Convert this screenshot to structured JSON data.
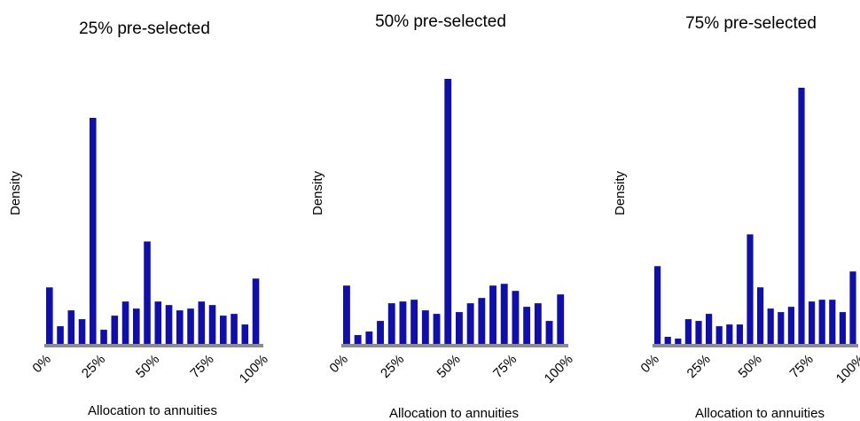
{
  "bar_color": "#1010a8",
  "baseline_color": "#8c8c8c",
  "chart_data": [
    {
      "type": "bar",
      "title": "25% pre-selected",
      "xlabel": "Allocation to annuities",
      "ylabel": "Density",
      "x_ticks": [
        "0%",
        "25%",
        "50%",
        "75%",
        "100%"
      ],
      "x_tick_bins": [
        0,
        5,
        10,
        15,
        20
      ],
      "ylim": [
        0,
        130
      ],
      "values": [
        32,
        10,
        19,
        14,
        128,
        8,
        16,
        24,
        20,
        58,
        24,
        22,
        19,
        20,
        24,
        22,
        16,
        17,
        11,
        37
      ]
    },
    {
      "type": "bar",
      "title": "50% pre-selected",
      "xlabel": "Allocation to annuities",
      "ylabel": "Density",
      "x_ticks": [
        "0%",
        "25%",
        "50%",
        "75%",
        "100%"
      ],
      "x_tick_bins": [
        0,
        5,
        10,
        15,
        20
      ],
      "ylim": [
        0,
        150
      ],
      "values": [
        33,
        5,
        7,
        13,
        23,
        24,
        25,
        19,
        17,
        150,
        18,
        23,
        26,
        33,
        34,
        30,
        21,
        23,
        13,
        28
      ]
    },
    {
      "type": "bar",
      "title": "75% pre-selected",
      "xlabel": "Allocation to annuities",
      "ylabel": "Density",
      "x_ticks": [
        "0%",
        "25%",
        "50%",
        "75%",
        "100%"
      ],
      "x_tick_bins": [
        0,
        5,
        10,
        15,
        20
      ],
      "ylim": [
        0,
        150
      ],
      "values": [
        44,
        4,
        3,
        14,
        13,
        17,
        10,
        11,
        11,
        62,
        32,
        20,
        18,
        21,
        145,
        24,
        25,
        25,
        18,
        41
      ]
    }
  ]
}
